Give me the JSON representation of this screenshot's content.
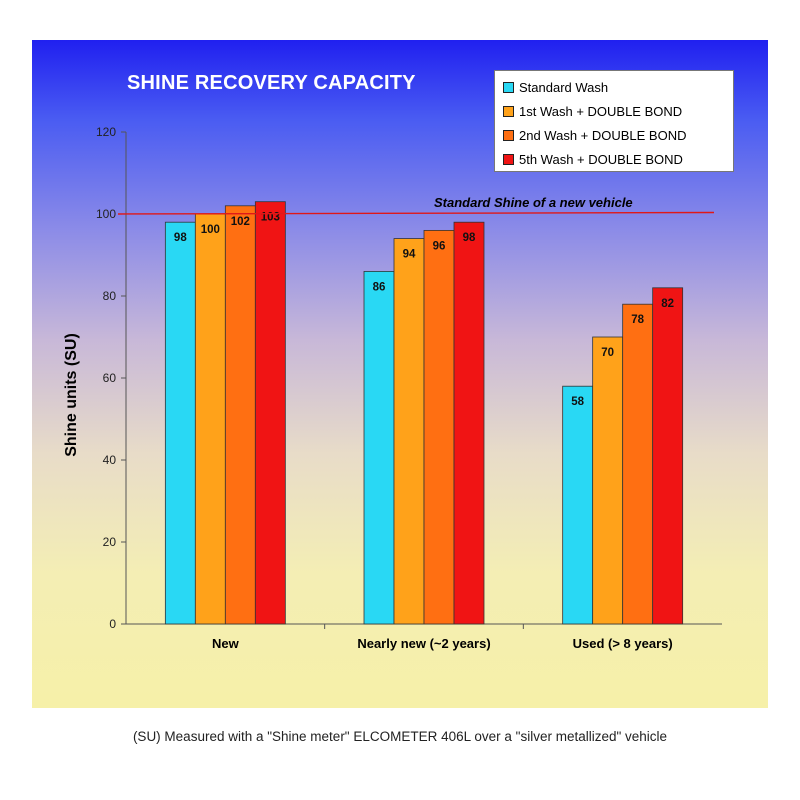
{
  "chart_data": {
    "type": "bar",
    "title": "SHINE RECOVERY CAPACITY",
    "ylabel": "Shine units  (SU)",
    "xlabel": "",
    "ylim": [
      0,
      120
    ],
    "yticks": [
      0,
      20,
      40,
      60,
      80,
      100,
      120
    ],
    "categories": [
      "New",
      "Nearly new (~2 years)",
      "Used (> 8 years)"
    ],
    "series": [
      {
        "name": "Standard Wash",
        "values": [
          98,
          86,
          58
        ],
        "color": "#29d8f4"
      },
      {
        "name": "1st Wash +  DOUBLE BOND",
        "values": [
          100,
          94,
          70
        ],
        "color": "#ffa21a"
      },
      {
        "name": "2nd Wash +  DOUBLE BOND",
        "values": [
          102,
          96,
          78
        ],
        "color": "#ff6f12"
      },
      {
        "name": "5th Wash + DOUBLE BOND",
        "values": [
          103,
          98,
          82
        ],
        "color": "#f01414"
      }
    ],
    "reference_line": {
      "label": "Standard Shine of a new vehicle",
      "value": 100,
      "color": "#e01818"
    },
    "legend_position": "top-right",
    "grid": false,
    "data_labels": true
  },
  "caption": "(SU) Measured with a \"Shine meter\" ELCOMETER 406L over a \"silver metallized\" vehicle"
}
